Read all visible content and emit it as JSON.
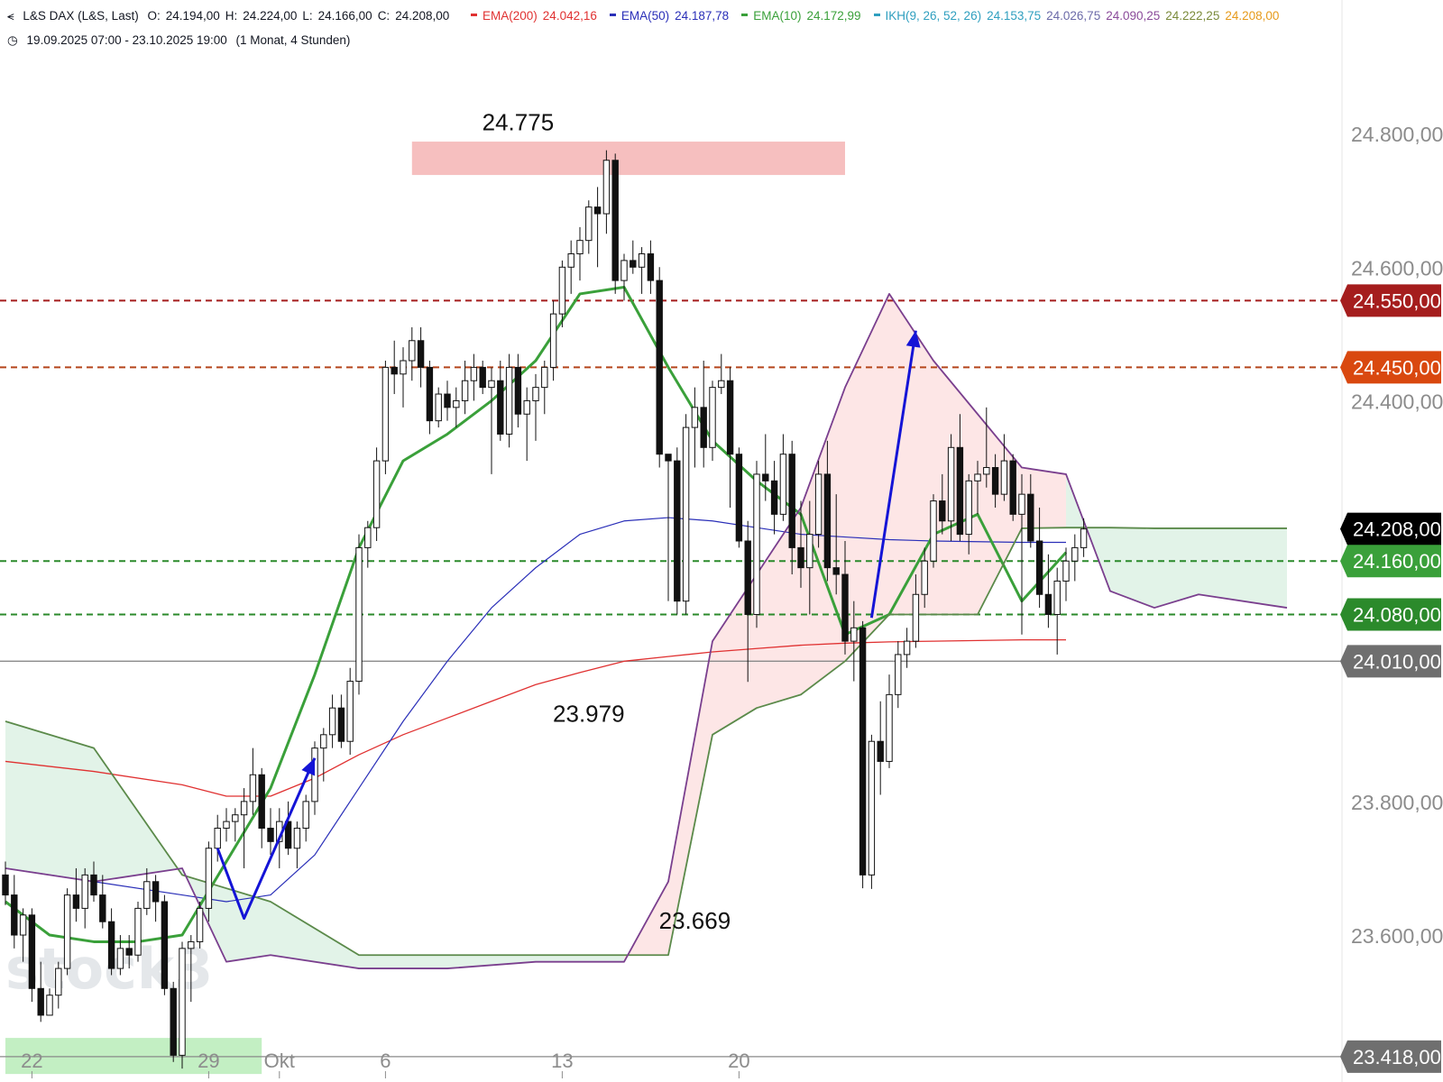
{
  "header": {
    "symbol_title": "L&S DAX (L&S, Last)",
    "ohlc": [
      {
        "label": "O:",
        "value": "24.194,00"
      },
      {
        "label": "H:",
        "value": "24.224,00"
      },
      {
        "label": "L:",
        "value": "24.166,00"
      },
      {
        "label": "C:",
        "value": "24.208,00"
      }
    ],
    "indicators": [
      {
        "name": "EMA(200)",
        "value": "24.042,16",
        "color": "#e03131"
      },
      {
        "name": "EMA(50)",
        "value": "24.187,78",
        "color": "#2a2fb8"
      },
      {
        "name": "EMA(10)",
        "value": "24.172,99",
        "color": "#3aa03a"
      },
      {
        "name": "IKH(9, 26, 52, 26)",
        "value": "24.153,75",
        "color": "#2f9fbf"
      }
    ],
    "ikh_extra_values": [
      {
        "value": "24.026,75",
        "color": "#6b6aa8"
      },
      {
        "value": "24.090,25",
        "color": "#8a4a9a"
      },
      {
        "value": "24.222,25",
        "color": "#7a8a3a"
      },
      {
        "value": "24.208,00",
        "color": "#e69a1a"
      }
    ],
    "range_text": "19.09.2025 07:00 - 23.10.2025 19:00",
    "interval_text": "(1 Monat, 4 Stunden)"
  },
  "watermark": "stock3",
  "chart_data": {
    "type": "candlestick",
    "ylim": [
      23380,
      25000
    ],
    "y_ticks": [
      {
        "value": 23600,
        "label": "23.600,00"
      },
      {
        "value": 23800,
        "label": "23.800,00"
      },
      {
        "value": 24400,
        "label": "24.400,00"
      },
      {
        "value": 24600,
        "label": "24.600,00"
      },
      {
        "value": 24800,
        "label": "24.800,00"
      }
    ],
    "x_ticks": [
      {
        "bar": 3,
        "label": "22"
      },
      {
        "bar": 23,
        "label": "29"
      },
      {
        "bar": 31,
        "label": "Okt"
      },
      {
        "bar": 43,
        "label": "6"
      },
      {
        "bar": 63,
        "label": "13"
      },
      {
        "bar": 83,
        "label": "20"
      }
    ],
    "price_labels": [
      {
        "value": 24550,
        "label": "24.550,00",
        "color": "#a51d1d"
      },
      {
        "value": 24450,
        "label": "24.450,00",
        "color": "#d9480f"
      },
      {
        "value": 24208,
        "label": "24.208,00",
        "color": "#000000"
      },
      {
        "value": 24160,
        "label": "24.160,00",
        "color": "#3aa03a"
      },
      {
        "value": 24080,
        "label": "24.080,00",
        "color": "#2b8a2b"
      },
      {
        "value": 24010,
        "label": "24.010,00",
        "color": "#6f6f6f"
      },
      {
        "value": 23418,
        "label": "23.418,00",
        "color": "#6f6f6f"
      }
    ],
    "horizontal_lines": [
      {
        "value": 24550,
        "color": "#a51d1d",
        "dash": true
      },
      {
        "value": 24450,
        "color": "#b5451b",
        "dash": true
      },
      {
        "value": 24160,
        "color": "#2b8a2b",
        "dash": true
      },
      {
        "value": 24080,
        "color": "#2b8a2b",
        "dash": true
      },
      {
        "value": 24010,
        "color": "#8a8a8a",
        "dash": false
      },
      {
        "value": 23418,
        "color": "#8a8a8a",
        "dash": false
      }
    ],
    "zones": [
      {
        "x_start_bar": 46,
        "x_end_bar": 95,
        "y_low": 24738,
        "y_high": 24788,
        "color": "#f4b4b4"
      },
      {
        "x_start_bar": 0,
        "x_end_bar": 29,
        "y_low": 23392,
        "y_high": 23446,
        "color": "#b8ecb8"
      }
    ],
    "annotations": [
      {
        "text": "24.775",
        "bar": 58,
        "value": 24775,
        "place": "above"
      },
      {
        "text": "23.979",
        "bar": 66,
        "value": 23979,
        "place": "below"
      },
      {
        "text": "23.669",
        "bar": 78,
        "value": 23669,
        "place": "below"
      }
    ],
    "arrows": [
      {
        "points": [
          [
            24,
            23730
          ],
          [
            27,
            23625
          ],
          [
            35,
            23865
          ]
        ],
        "color": "#1414d6"
      },
      {
        "points": [
          [
            98,
            24075
          ],
          [
            103,
            24505
          ]
        ],
        "color": "#1414d6"
      }
    ],
    "candles": [
      [
        23690,
        23710,
        23645,
        23660
      ],
      [
        23660,
        23690,
        23580,
        23600
      ],
      [
        23600,
        23640,
        23560,
        23630
      ],
      [
        23630,
        23640,
        23500,
        23520
      ],
      [
        23520,
        23560,
        23470,
        23480
      ],
      [
        23480,
        23520,
        23480,
        23510
      ],
      [
        23510,
        23560,
        23490,
        23550
      ],
      [
        23550,
        23670,
        23540,
        23660
      ],
      [
        23660,
        23700,
        23620,
        23640
      ],
      [
        23640,
        23700,
        23610,
        23690
      ],
      [
        23690,
        23710,
        23650,
        23660
      ],
      [
        23660,
        23690,
        23610,
        23620
      ],
      [
        23620,
        23640,
        23540,
        23550
      ],
      [
        23550,
        23600,
        23540,
        23580
      ],
      [
        23580,
        23600,
        23550,
        23570
      ],
      [
        23570,
        23650,
        23560,
        23640
      ],
      [
        23640,
        23700,
        23630,
        23680
      ],
      [
        23680,
        23690,
        23620,
        23650
      ],
      [
        23650,
        23660,
        23510,
        23520
      ],
      [
        23520,
        23530,
        23410,
        23420
      ],
      [
        23420,
        23590,
        23400,
        23580
      ],
      [
        23580,
        23600,
        23500,
        23590
      ],
      [
        23590,
        23650,
        23580,
        23640
      ],
      [
        23640,
        23740,
        23620,
        23730
      ],
      [
        23730,
        23780,
        23710,
        23760
      ],
      [
        23760,
        23790,
        23740,
        23770
      ],
      [
        23770,
        23790,
        23740,
        23780
      ],
      [
        23780,
        23820,
        23700,
        23800
      ],
      [
        23800,
        23880,
        23780,
        23840
      ],
      [
        23840,
        23850,
        23730,
        23760
      ],
      [
        23760,
        23790,
        23720,
        23740
      ],
      [
        23740,
        23790,
        23700,
        23770
      ],
      [
        23770,
        23800,
        23720,
        23730
      ],
      [
        23730,
        23770,
        23700,
        23760
      ],
      [
        23760,
        23810,
        23740,
        23800
      ],
      [
        23800,
        23890,
        23780,
        23880
      ],
      [
        23880,
        23910,
        23830,
        23900
      ],
      [
        23900,
        23960,
        23880,
        23940
      ],
      [
        23940,
        23960,
        23880,
        23890
      ],
      [
        23890,
        24000,
        23870,
        23980
      ],
      [
        23980,
        24200,
        23960,
        24180
      ],
      [
        24180,
        24220,
        24150,
        24210
      ],
      [
        24210,
        24330,
        24190,
        24310
      ],
      [
        24310,
        24460,
        24290,
        24450
      ],
      [
        24450,
        24490,
        24410,
        24440
      ],
      [
        24440,
        24480,
        24390,
        24460
      ],
      [
        24460,
        24510,
        24430,
        24490
      ],
      [
        24490,
        24510,
        24420,
        24450
      ],
      [
        24450,
        24460,
        24350,
        24370
      ],
      [
        24370,
        24420,
        24360,
        24410
      ],
      [
        24410,
        24430,
        24370,
        24390
      ],
      [
        24390,
        24420,
        24360,
        24400
      ],
      [
        24400,
        24460,
        24380,
        24430
      ],
      [
        24430,
        24470,
        24400,
        24450
      ],
      [
        24450,
        24460,
        24410,
        24420
      ],
      [
        24420,
        24450,
        24290,
        24430
      ],
      [
        24430,
        24460,
        24340,
        24350
      ],
      [
        24350,
        24470,
        24330,
        24450
      ],
      [
        24450,
        24470,
        24360,
        24380
      ],
      [
        24380,
        24420,
        24310,
        24400
      ],
      [
        24400,
        24440,
        24340,
        24420
      ],
      [
        24420,
        24460,
        24380,
        24450
      ],
      [
        24450,
        24550,
        24430,
        24530
      ],
      [
        24530,
        24610,
        24510,
        24600
      ],
      [
        24600,
        24640,
        24560,
        24620
      ],
      [
        24620,
        24660,
        24580,
        24640
      ],
      [
        24640,
        24700,
        24620,
        24690
      ],
      [
        24690,
        24720,
        24600,
        24680
      ],
      [
        24680,
        24775,
        24650,
        24760
      ],
      [
        24760,
        24770,
        24560,
        24580
      ],
      [
        24580,
        24620,
        24550,
        24610
      ],
      [
        24610,
        24640,
        24590,
        24600
      ],
      [
        24600,
        24630,
        24560,
        24620
      ],
      [
        24620,
        24640,
        24560,
        24580
      ],
      [
        24580,
        24600,
        24300,
        24320
      ],
      [
        24320,
        24320,
        24100,
        24310
      ],
      [
        24310,
        24330,
        24080,
        24100
      ],
      [
        24100,
        24380,
        24080,
        24360
      ],
      [
        24360,
        24420,
        24300,
        24390
      ],
      [
        24390,
        24460,
        24300,
        24330
      ],
      [
        24330,
        24430,
        24310,
        24420
      ],
      [
        24420,
        24470,
        24410,
        24430
      ],
      [
        24430,
        24450,
        24240,
        24320
      ],
      [
        24320,
        24330,
        24180,
        24190
      ],
      [
        24190,
        24220,
        23979,
        24080
      ],
      [
        24080,
        24310,
        24060,
        24290
      ],
      [
        24290,
        24350,
        24250,
        24280
      ],
      [
        24280,
        24310,
        24200,
        24230
      ],
      [
        24230,
        24350,
        24220,
        24320
      ],
      [
        24320,
        24340,
        24140,
        24180
      ],
      [
        24180,
        24250,
        24120,
        24150
      ],
      [
        24150,
        24250,
        24080,
        24200
      ],
      [
        24200,
        24310,
        24180,
        24290
      ],
      [
        24290,
        24340,
        24130,
        24150
      ],
      [
        24150,
        24260,
        24110,
        24140
      ],
      [
        24140,
        24190,
        24020,
        24040
      ],
      [
        24040,
        24100,
        23980,
        24060
      ],
      [
        24060,
        24070,
        23670,
        23690
      ],
      [
        23690,
        23900,
        23669,
        23890
      ],
      [
        23890,
        23950,
        23810,
        23860
      ],
      [
        23860,
        23990,
        23850,
        23960
      ],
      [
        23960,
        24040,
        23940,
        24020
      ],
      [
        24020,
        24060,
        24000,
        24040
      ],
      [
        24040,
        24140,
        24030,
        24110
      ],
      [
        24110,
        24180,
        24090,
        24160
      ],
      [
        24160,
        24260,
        24150,
        24250
      ],
      [
        24250,
        24290,
        24200,
        24220
      ],
      [
        24220,
        24350,
        24190,
        24330
      ],
      [
        24330,
        24380,
        24190,
        24200
      ],
      [
        24200,
        24290,
        24170,
        24280
      ],
      [
        24280,
        24310,
        24230,
        24290
      ],
      [
        24290,
        24390,
        24270,
        24300
      ],
      [
        24300,
        24320,
        24240,
        24260
      ],
      [
        24260,
        24350,
        24250,
        24310
      ],
      [
        24310,
        24320,
        24220,
        24230
      ],
      [
        24230,
        24290,
        24050,
        24260
      ],
      [
        24260,
        24290,
        24180,
        24190
      ],
      [
        24190,
        24240,
        24090,
        24110
      ],
      [
        24110,
        24170,
        24060,
        24080
      ],
      [
        24080,
        24150,
        24020,
        24130
      ],
      [
        24130,
        24180,
        24100,
        24160
      ],
      [
        24160,
        24200,
        24130,
        24180
      ],
      [
        24180,
        24224,
        24166,
        24208
      ]
    ],
    "series": [
      {
        "name": "EMA(200)",
        "color": "#e03131",
        "width": 1.3,
        "x_bars": [
          0,
          10,
          20,
          25,
          30,
          35,
          40,
          45,
          50,
          55,
          60,
          65,
          70,
          75,
          80,
          85,
          90,
          95,
          100,
          105,
          110,
          115,
          120
        ],
        "values": [
          23860,
          23845,
          23825,
          23808,
          23808,
          23835,
          23870,
          23900,
          23925,
          23950,
          23975,
          23993,
          24010,
          24017,
          24024,
          24029,
          24034,
          24037,
          24039,
          24040,
          24041,
          24042,
          24042
        ]
      },
      {
        "name": "EMA(50)",
        "color": "#2a2fb8",
        "width": 1.2,
        "x_bars": [
          0,
          10,
          20,
          25,
          30,
          35,
          40,
          45,
          50,
          55,
          60,
          65,
          70,
          75,
          80,
          85,
          90,
          95,
          100,
          105,
          110,
          115,
          120
        ],
        "values": [
          23700,
          23680,
          23660,
          23650,
          23660,
          23720,
          23820,
          23920,
          24010,
          24090,
          24150,
          24200,
          24220,
          24225,
          24220,
          24210,
          24200,
          24196,
          24192,
          24190,
          24189,
          24188,
          24188
        ]
      },
      {
        "name": "EMA(10)",
        "color": "#3aa03a",
        "width": 3,
        "x_bars": [
          0,
          5,
          10,
          15,
          20,
          25,
          30,
          35,
          40,
          45,
          50,
          55,
          60,
          65,
          70,
          75,
          80,
          85,
          90,
          95,
          100,
          105,
          110,
          115,
          120
        ],
        "values": [
          23650,
          23600,
          23590,
          23590,
          23600,
          23710,
          23820,
          23990,
          24180,
          24310,
          24350,
          24400,
          24460,
          24560,
          24570,
          24450,
          24340,
          24280,
          24230,
          24050,
          24080,
          24200,
          24230,
          24100,
          24173
        ]
      },
      {
        "name": "Senkou A",
        "color": "#5b8a4a",
        "width": 1.8,
        "x_bars": [
          0,
          10,
          20,
          25,
          30,
          40,
          50,
          60,
          70,
          75,
          80,
          85,
          90,
          95,
          100,
          105,
          110,
          115,
          120,
          125,
          130,
          135,
          145
        ],
        "values": [
          23920,
          23880,
          23690,
          23670,
          23650,
          23570,
          23570,
          23570,
          23570,
          23570,
          23900,
          23940,
          23960,
          24010,
          24080,
          24080,
          24080,
          24209,
          24210,
          24210,
          24209,
          24209,
          24209
        ]
      },
      {
        "name": "Senkou B",
        "color": "#7a3f8e",
        "width": 1.8,
        "x_bars": [
          0,
          10,
          20,
          25,
          30,
          40,
          50,
          60,
          70,
          75,
          80,
          85,
          90,
          95,
          100,
          105,
          110,
          115,
          120,
          125,
          130,
          135,
          145
        ],
        "values": [
          23700,
          23680,
          23700,
          23560,
          23570,
          23550,
          23550,
          23560,
          23560,
          23680,
          24040,
          24140,
          24240,
          24420,
          24560,
          24460,
          24380,
          24300,
          24290,
          24115,
          24090,
          24110,
          24090
        ]
      }
    ],
    "kumo_bars": [
      0,
      10,
      20,
      25,
      30,
      40,
      50,
      60,
      70,
      75,
      80,
      85,
      90,
      95,
      100,
      105,
      110,
      115,
      120,
      125,
      130,
      135,
      145
    ]
  }
}
